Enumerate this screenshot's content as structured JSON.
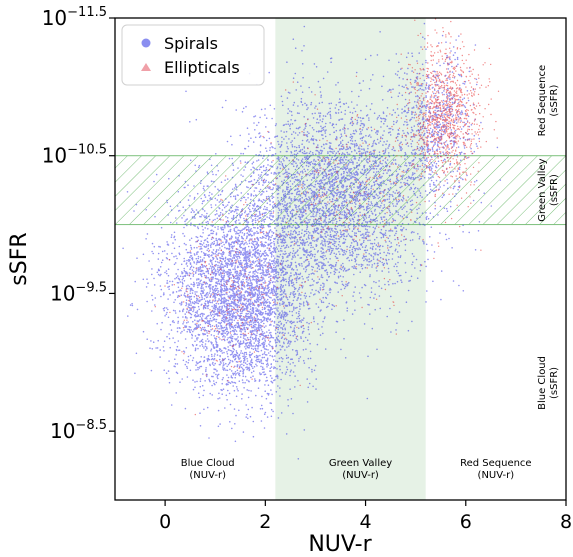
{
  "chart_data": {
    "type": "scatter",
    "xlabel": "NUV-r",
    "ylabel": "sSFR",
    "xlim": [
      -1,
      8
    ],
    "ylim_exponent": [
      -8.0,
      -11.5
    ],
    "y_axis_inverted": true,
    "y_scale": "log",
    "x_ticks": [
      "0",
      "2",
      "4",
      "6",
      "8"
    ],
    "y_ticks": [
      {
        "exp": -11.5,
        "label": "−11.5"
      },
      {
        "exp": -10.5,
        "label": "−10.5"
      },
      {
        "exp": -9.5,
        "label": "−9.5"
      },
      {
        "exp": -8.5,
        "label": "−8.5"
      }
    ],
    "y_tick_base": "10",
    "legend": {
      "placement": "top-left",
      "entries": [
        {
          "label": "Spirals",
          "marker": "circle",
          "color": "#8a8ef0"
        },
        {
          "label": "Ellipticals",
          "marker": "triangle",
          "color": "#f0a0a8"
        }
      ]
    },
    "series": [
      {
        "name": "Spirals",
        "color": "#3a3ae6",
        "clusters": [
          {
            "x_mean": 1.5,
            "exp_mean": -9.5,
            "x_sd": 0.7,
            "exp_sd": 0.35,
            "count": 4500
          },
          {
            "x_mean": 3.4,
            "exp_mean": -10.2,
            "x_sd": 0.9,
            "exp_sd": 0.35,
            "count": 3500
          },
          {
            "x_mean": 5.4,
            "exp_mean": -10.75,
            "x_sd": 0.4,
            "exp_sd": 0.25,
            "count": 700
          }
        ]
      },
      {
        "name": "Ellipticals",
        "color": "#e83a3a",
        "clusters": [
          {
            "x_mean": 5.6,
            "exp_mean": -10.8,
            "x_sd": 0.35,
            "exp_sd": 0.25,
            "count": 1000
          },
          {
            "x_mean": 3.8,
            "exp_mean": -10.2,
            "x_sd": 0.9,
            "exp_sd": 0.35,
            "count": 300
          },
          {
            "x_mean": 1.4,
            "exp_mean": -9.5,
            "x_sd": 0.6,
            "exp_sd": 0.3,
            "count": 250
          }
        ]
      }
    ],
    "regions": {
      "green_valley_nuvr": {
        "x_range": [
          2.2,
          5.2
        ],
        "color": "#e6f2e6"
      },
      "green_valley_ssfr": {
        "exp_range": [
          -10.5,
          -10.0
        ],
        "color": "#7cc07c"
      }
    },
    "annotations": {
      "bottom": [
        {
          "x": 0.85,
          "lines": [
            "Blue Cloud",
            "(NUV-r)"
          ]
        },
        {
          "x": 3.9,
          "lines": [
            "Green Valley",
            "(NUV-r)"
          ]
        },
        {
          "x": 6.6,
          "lines": [
            "Red Sequence",
            "(NUV-r)"
          ]
        }
      ],
      "right": [
        {
          "exp": -10.9,
          "lines": [
            "Red Sequence",
            "(sSFR)"
          ]
        },
        {
          "exp": -10.25,
          "lines": [
            "Green Valley",
            "(sSFR)"
          ]
        },
        {
          "exp": -8.85,
          "lines": [
            "Blue Cloud",
            "(sSFR)"
          ]
        }
      ]
    }
  }
}
